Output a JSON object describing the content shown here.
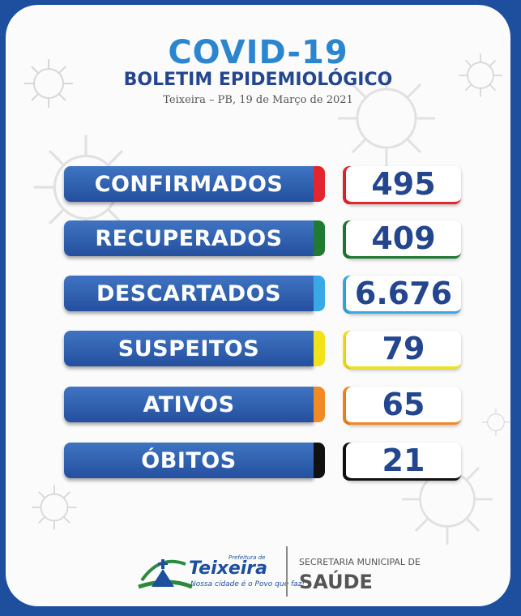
{
  "header": {
    "title": "COVID-19",
    "subtitle": "BOLETIM EPIDEMIOLÓGICO",
    "dateline": "Teixeira – PB, 19 de Março de 2021"
  },
  "stats": [
    {
      "label": "CONFIRMADOS",
      "value": "495",
      "color": "#e3262d"
    },
    {
      "label": "RECUPERADOS",
      "value": "409",
      "color": "#1f7a34"
    },
    {
      "label": "DESCARTADOS",
      "value": "6.676",
      "color": "#38a9e6"
    },
    {
      "label": "SUSPEITOS",
      "value": "79",
      "color": "#f2e21c"
    },
    {
      "label": "ATIVOS",
      "value": "65",
      "color": "#f08a24"
    },
    {
      "label": "ÓBITOS",
      "value": "21",
      "color": "#111111"
    }
  ],
  "footer": {
    "logo_prefix": "Prefeitura de",
    "logo_name": "Teixeira",
    "logo_tagline": "Nossa cidade é o Povo que faz!",
    "secretariat_label": "SECRETARIA MUNICIPAL DE",
    "secretariat_name": "SAÚDE"
  },
  "colors": {
    "background": "#1d4f9e",
    "title": "#2b86cf",
    "label_bar": "#2f5fae",
    "value_text": "#23468f"
  }
}
